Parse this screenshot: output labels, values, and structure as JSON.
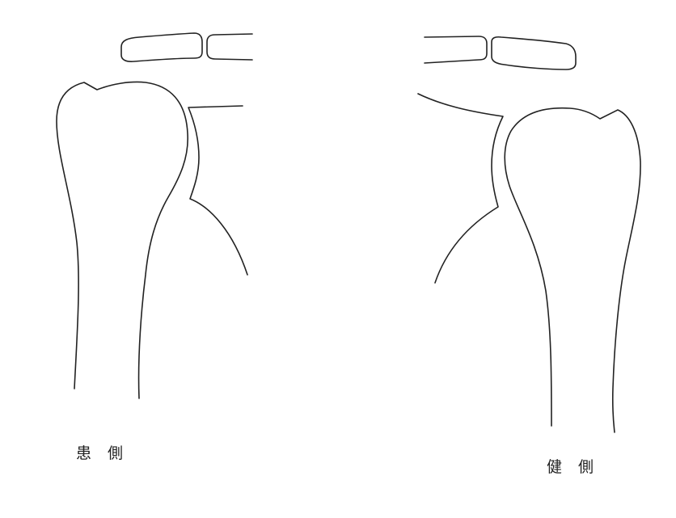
{
  "labels": {
    "affected_side": {
      "char1": "患",
      "char2": "側"
    },
    "healthy_side": {
      "char1": "健",
      "char2": "側"
    }
  },
  "colors": {
    "line": "#222222",
    "background": "#ffffff"
  }
}
